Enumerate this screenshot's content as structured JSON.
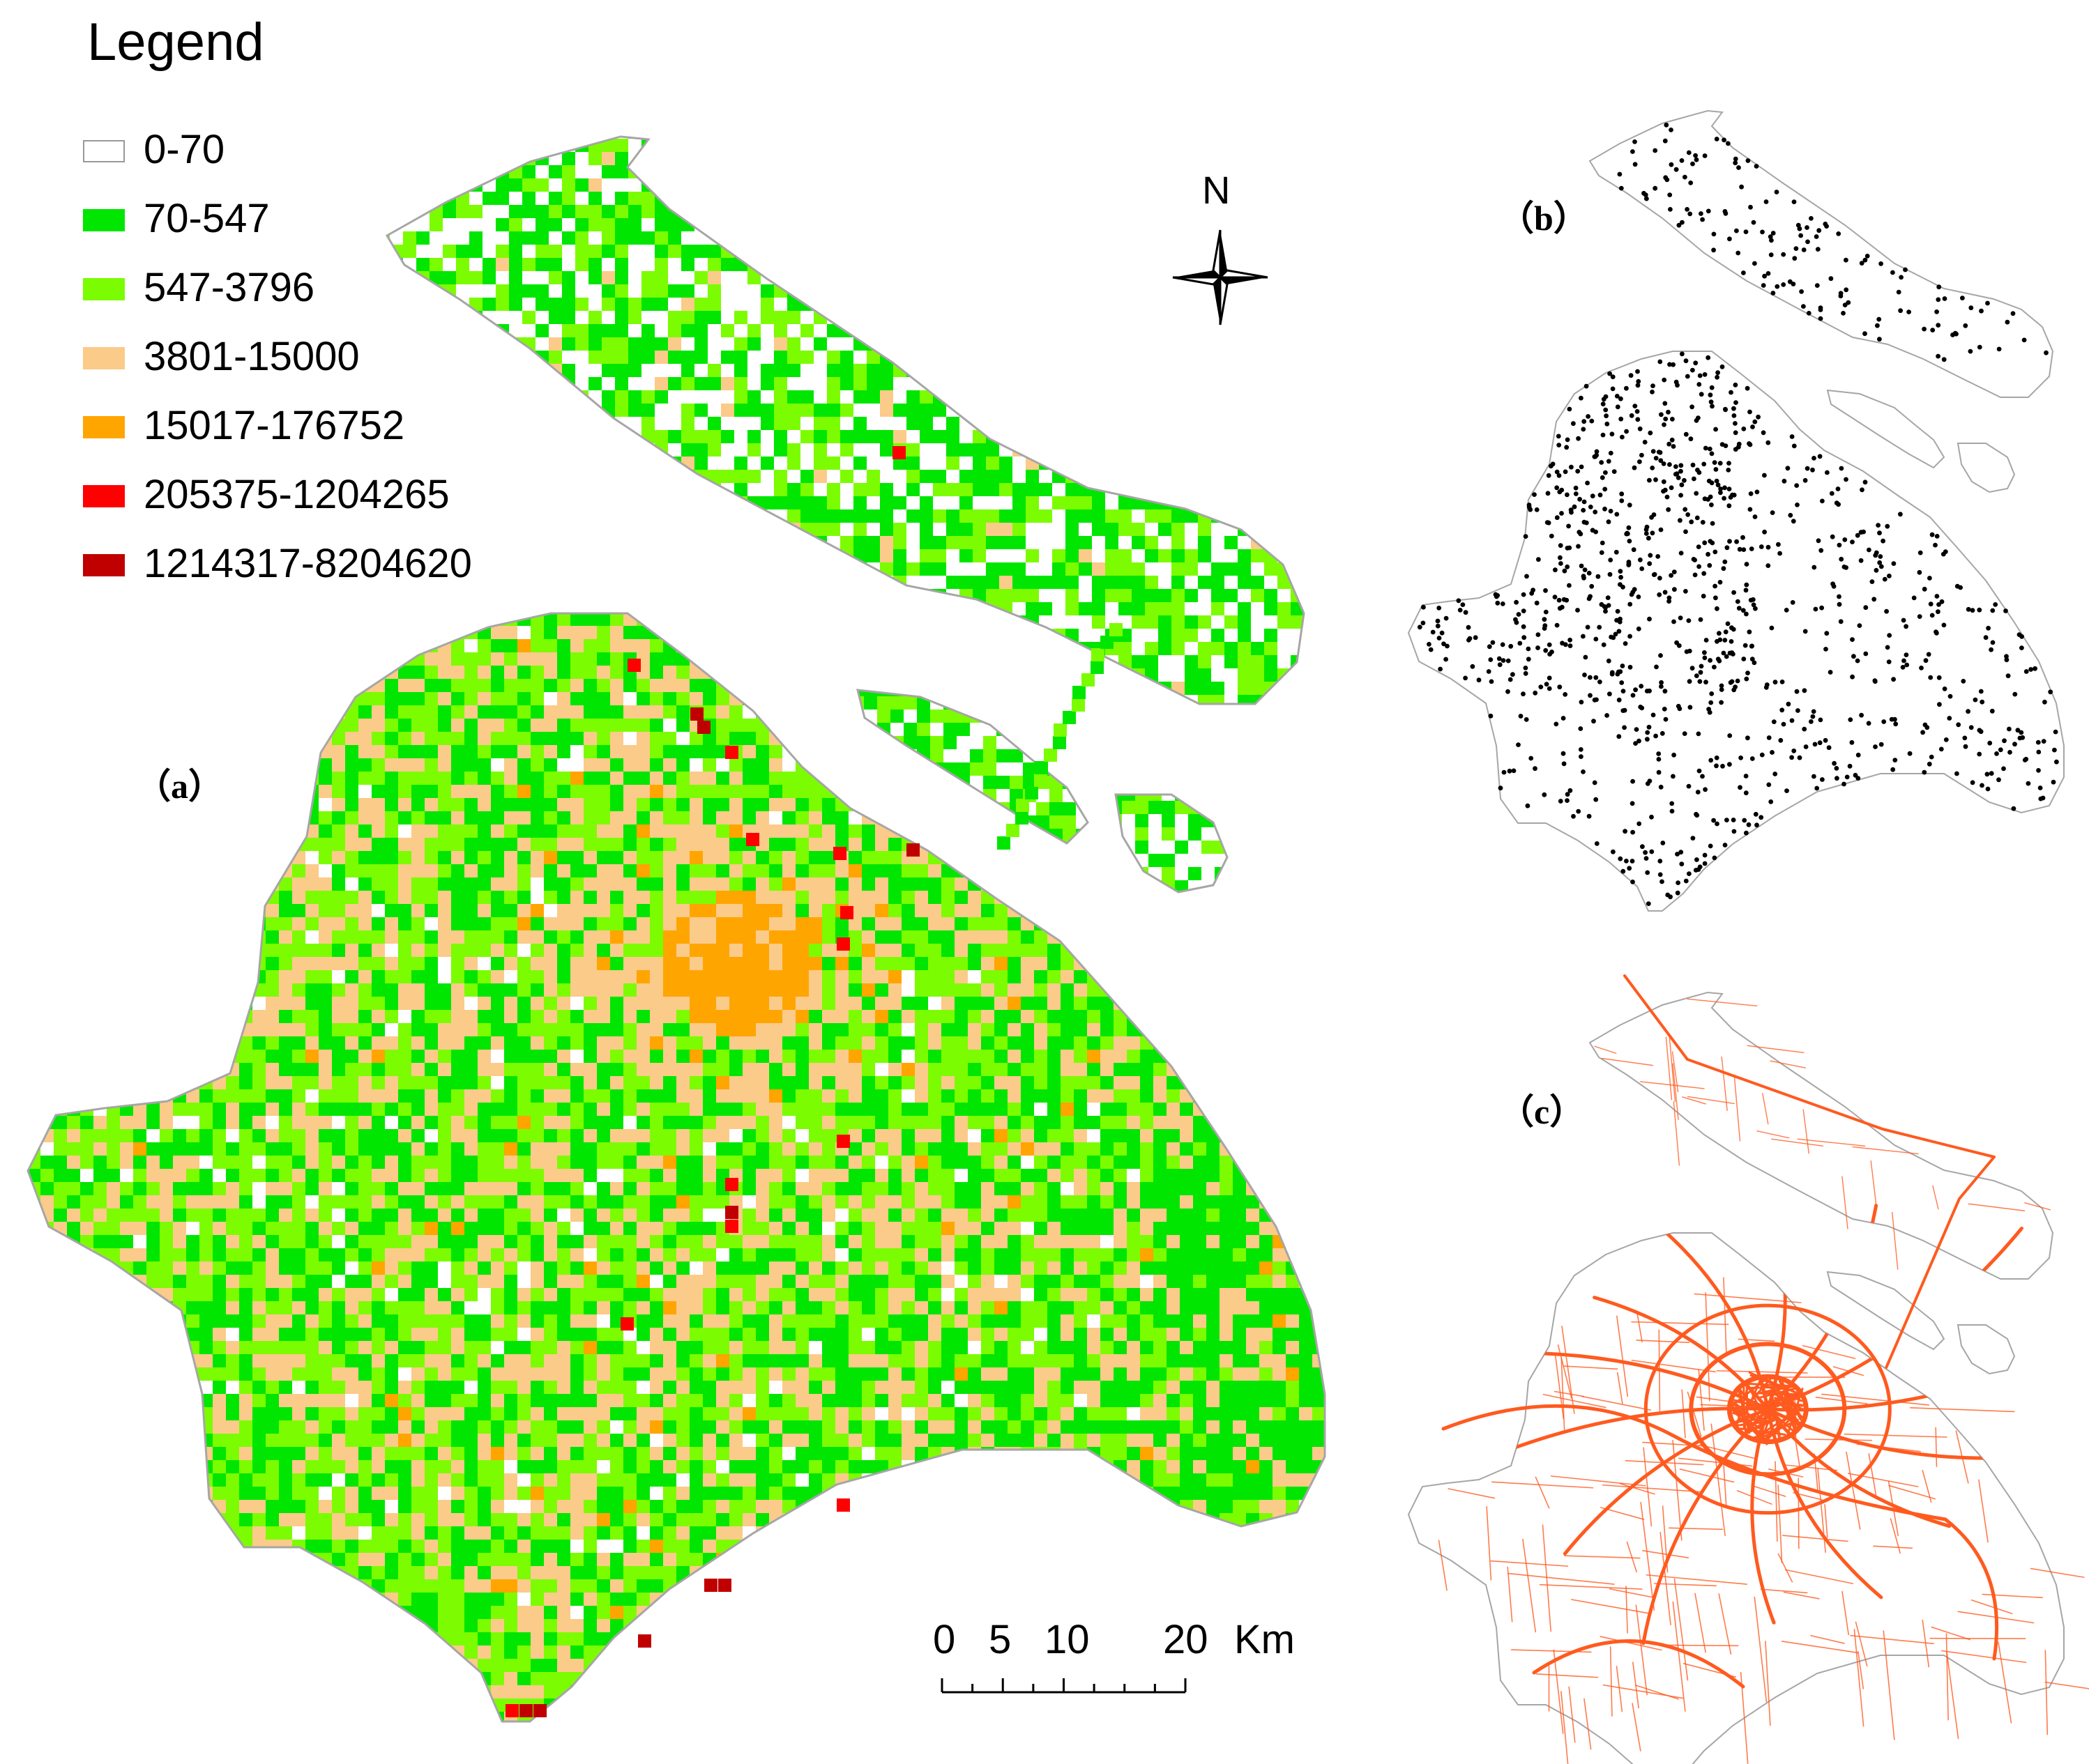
{
  "legend": {
    "title": "Legend",
    "items": [
      {
        "label": "0-70",
        "color": "#ffffff"
      },
      {
        "label": "70-547",
        "color": "#00e600"
      },
      {
        "label": "547-3796",
        "color": "#7cfc00"
      },
      {
        "label": "3801-15000",
        "color": "#fbcb8a"
      },
      {
        "label": "15017-176752",
        "color": "#ffa500"
      },
      {
        "label": "205375-1204265",
        "color": "#ff0000"
      },
      {
        "label": "1214317-8204620",
        "color": "#c00000"
      }
    ]
  },
  "panels": {
    "a": {
      "label": "（a）"
    },
    "b": {
      "label": "（b）"
    },
    "c": {
      "label": "（c）"
    }
  },
  "north_arrow": {
    "label": "N"
  },
  "scale_bar": {
    "ticks": [
      "0",
      "5",
      "10",
      "20"
    ],
    "unit": "Km"
  },
  "colors": {
    "outline": "#a6a6a6",
    "road": "#ff5a1f",
    "point": "#000000"
  }
}
